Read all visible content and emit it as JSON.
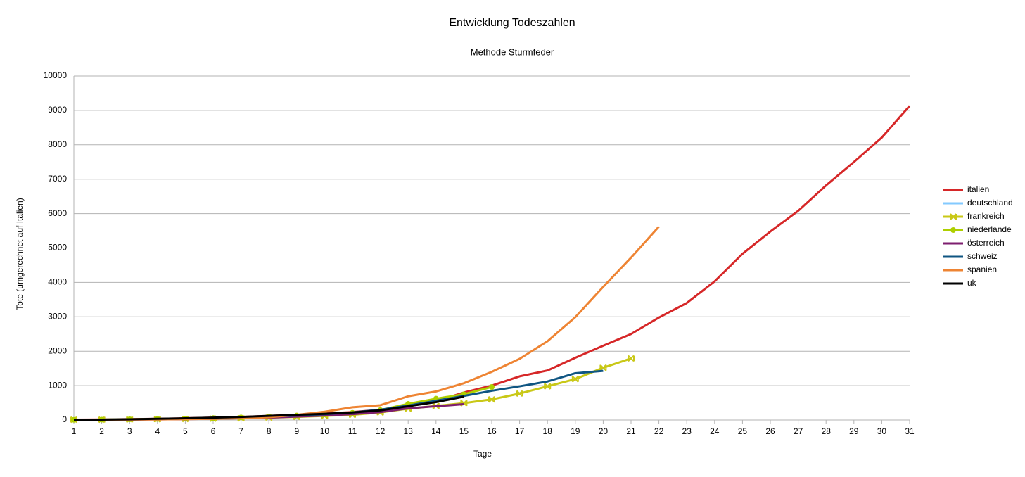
{
  "chart_data": {
    "type": "line",
    "title": "Entwicklung Todeszahlen",
    "subtitle": "Methode Sturmfeder",
    "x_label": "Tage",
    "y_label": "Tote (umgerechnet auf Italien)",
    "x": [
      1,
      2,
      3,
      4,
      5,
      6,
      7,
      8,
      9,
      10,
      11,
      12,
      13,
      14,
      15,
      16,
      17,
      18,
      19,
      20,
      21,
      22,
      23,
      24,
      25,
      26,
      27,
      28,
      29,
      30,
      31
    ],
    "xlim": [
      1,
      31
    ],
    "xticks": [
      1,
      2,
      3,
      4,
      5,
      6,
      7,
      8,
      9,
      10,
      11,
      12,
      13,
      14,
      15,
      16,
      17,
      18,
      19,
      20,
      21,
      22,
      23,
      24,
      25,
      26,
      27,
      28,
      29,
      30,
      31
    ],
    "ylim": [
      0,
      10000
    ],
    "yticks": [
      0,
      1000,
      2000,
      3000,
      4000,
      5000,
      6000,
      7000,
      8000,
      9000,
      10000
    ],
    "grid": true,
    "legend": "right",
    "series": [
      {
        "name": "italien",
        "color": "#d62728",
        "marker": "none",
        "values": [
          10,
          15,
          25,
          35,
          50,
          70,
          90,
          120,
          150,
          190,
          230,
          300,
          400,
          550,
          800,
          1000,
          1270,
          1440,
          1810,
          2160,
          2500,
          2980,
          3400,
          4030,
          4830,
          5480,
          6080,
          6820,
          7500,
          8210,
          9130
        ]
      },
      {
        "name": "deutschland",
        "color": "#83caff",
        "marker": "none",
        "values": [
          5,
          10,
          15,
          25,
          35,
          50,
          70,
          90,
          110,
          150,
          190,
          null,
          null,
          null,
          null,
          null,
          null,
          null,
          null,
          null,
          null,
          null,
          null,
          null,
          null,
          null,
          null,
          null,
          null,
          null,
          null
        ]
      },
      {
        "name": "frankreich",
        "color": "#c9c817",
        "marker": "cross",
        "values": [
          10,
          10,
          15,
          20,
          30,
          40,
          50,
          70,
          90,
          120,
          150,
          220,
          330,
          410,
          490,
          600,
          770,
          980,
          1190,
          1520,
          1790,
          null,
          null,
          null,
          null,
          null,
          null,
          null,
          null,
          null,
          null
        ]
      },
      {
        "name": "niederlande",
        "color": "#aecf00",
        "marker": "circle",
        "values": [
          5,
          10,
          20,
          30,
          40,
          55,
          75,
          100,
          130,
          165,
          210,
          290,
          470,
          620,
          750,
          960,
          null,
          null,
          null,
          null,
          null,
          null,
          null,
          null,
          null,
          null,
          null,
          null,
          null,
          null,
          null
        ]
      },
      {
        "name": "österreich",
        "color": "#7e1f6f",
        "marker": "none",
        "values": [
          5,
          8,
          12,
          18,
          25,
          35,
          50,
          70,
          100,
          130,
          170,
          230,
          340,
          400,
          460,
          null,
          null,
          null,
          null,
          null,
          null,
          null,
          null,
          null,
          null,
          null,
          null,
          null,
          null,
          null,
          null
        ]
      },
      {
        "name": "schweiz",
        "color": "#0f5582",
        "marker": "none",
        "values": [
          5,
          10,
          18,
          28,
          40,
          55,
          75,
          100,
          130,
          170,
          220,
          300,
          420,
          560,
          700,
          850,
          980,
          1120,
          1360,
          1430,
          null,
          null,
          null,
          null,
          null,
          null,
          null,
          null,
          null,
          null,
          null
        ]
      },
      {
        "name": "spanien",
        "color": "#ee8433",
        "marker": "none",
        "values": [
          5,
          8,
          12,
          18,
          25,
          35,
          50,
          80,
          150,
          240,
          370,
          430,
          690,
          830,
          1070,
          1400,
          1780,
          2290,
          2990,
          3870,
          4720,
          5620,
          null,
          null,
          null,
          null,
          null,
          null,
          null,
          null,
          null
        ]
      },
      {
        "name": "uk",
        "color": "#000000",
        "marker": "none",
        "values": [
          5,
          10,
          20,
          35,
          50,
          70,
          90,
          120,
          150,
          180,
          220,
          280,
          400,
          520,
          680,
          null,
          null,
          null,
          null,
          null,
          null,
          null,
          null,
          null,
          null,
          null,
          null,
          null,
          null,
          null,
          null
        ]
      }
    ]
  }
}
